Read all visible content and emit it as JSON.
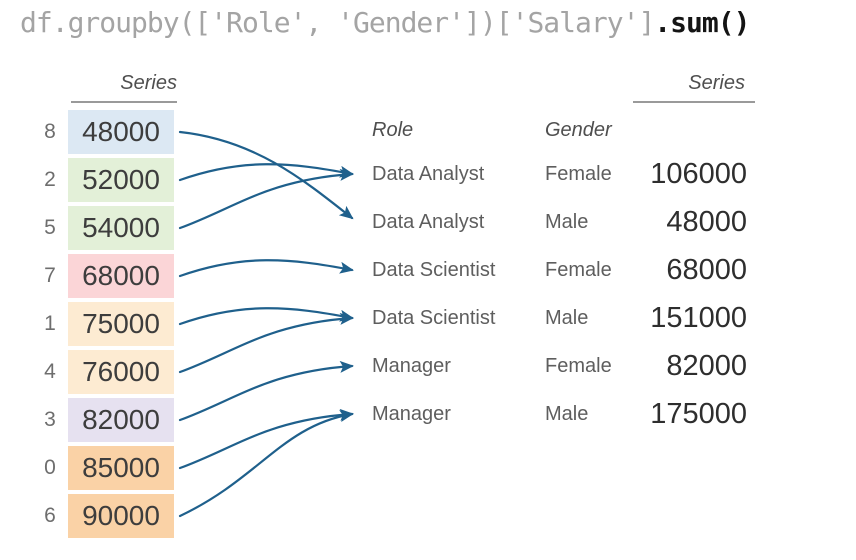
{
  "title": {
    "code_gray": "df.groupby(['Role', 'Gender'])['Salary']",
    "code_bold": ".sum()"
  },
  "left_series": {
    "header": "Series",
    "rows": [
      {
        "index": "8",
        "value": "48000",
        "color": "#dce8f3"
      },
      {
        "index": "2",
        "value": "52000",
        "color": "#e3f0d8"
      },
      {
        "index": "5",
        "value": "54000",
        "color": "#e3f0d8"
      },
      {
        "index": "7",
        "value": "68000",
        "color": "#fbd5d7"
      },
      {
        "index": "1",
        "value": "75000",
        "color": "#fdebd2"
      },
      {
        "index": "4",
        "value": "76000",
        "color": "#fdebd2"
      },
      {
        "index": "3",
        "value": "82000",
        "color": "#e6e1f0"
      },
      {
        "index": "0",
        "value": "85000",
        "color": "#fad2a6"
      },
      {
        "index": "6",
        "value": "90000",
        "color": "#fad2a6"
      }
    ]
  },
  "result": {
    "series_header": "Series",
    "role_header": "Role",
    "gender_header": "Gender",
    "rows": [
      {
        "role": "Data Analyst",
        "gender": "Female",
        "value": "106000"
      },
      {
        "role": "Data Analyst",
        "gender": "Male",
        "value": "48000"
      },
      {
        "role": "Data Scientist",
        "gender": "Female",
        "value": "68000"
      },
      {
        "role": "Data Scientist",
        "gender": "Male",
        "value": "151000"
      },
      {
        "role": "Manager",
        "gender": "Female",
        "value": "82000"
      },
      {
        "role": "Manager",
        "gender": "Male",
        "value": "175000"
      }
    ]
  },
  "arrows": [
    {
      "from": 0,
      "to": 1
    },
    {
      "from": 1,
      "to": 0
    },
    {
      "from": 2,
      "to": 0
    },
    {
      "from": 3,
      "to": 2
    },
    {
      "from": 4,
      "to": 3
    },
    {
      "from": 5,
      "to": 3
    },
    {
      "from": 6,
      "to": 4
    },
    {
      "from": 7,
      "to": 5
    },
    {
      "from": 8,
      "to": 5
    }
  ],
  "colors": {
    "arrow": "#1f608c",
    "underline": "#9a9a9a"
  }
}
